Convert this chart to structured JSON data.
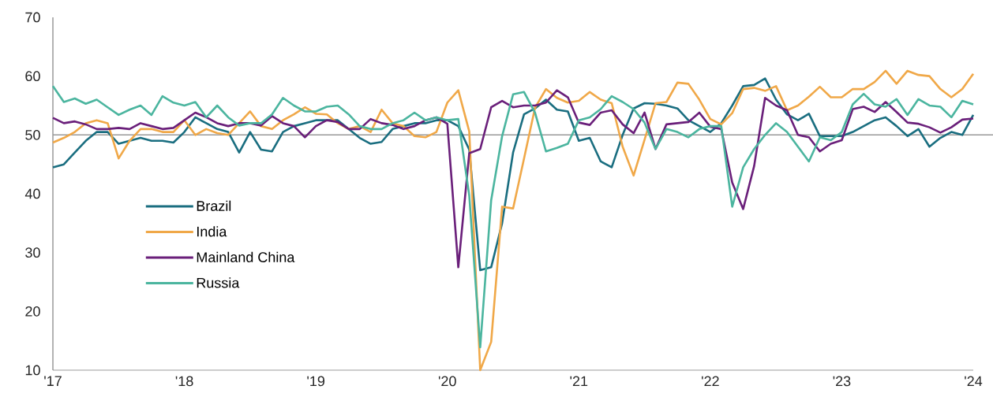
{
  "chart_data": {
    "type": "line",
    "x": [
      "2017-01",
      "2017-02",
      "2017-03",
      "2017-04",
      "2017-05",
      "2017-06",
      "2017-07",
      "2017-08",
      "2017-09",
      "2017-10",
      "2017-11",
      "2017-12",
      "2018-01",
      "2018-02",
      "2018-03",
      "2018-04",
      "2018-05",
      "2018-06",
      "2018-07",
      "2018-08",
      "2018-09",
      "2018-10",
      "2018-11",
      "2018-12",
      "2019-01",
      "2019-02",
      "2019-03",
      "2019-04",
      "2019-05",
      "2019-06",
      "2019-07",
      "2019-08",
      "2019-09",
      "2019-10",
      "2019-11",
      "2019-12",
      "2020-01",
      "2020-02",
      "2020-03",
      "2020-04",
      "2020-05",
      "2020-06",
      "2020-07",
      "2020-08",
      "2020-09",
      "2020-10",
      "2020-11",
      "2020-12",
      "2021-01",
      "2021-02",
      "2021-03",
      "2021-04",
      "2021-05",
      "2021-06",
      "2021-07",
      "2021-08",
      "2021-09",
      "2021-10",
      "2021-11",
      "2021-12",
      "2022-01",
      "2022-02",
      "2022-03",
      "2022-04",
      "2022-05",
      "2022-06",
      "2022-07",
      "2022-08",
      "2022-09",
      "2022-10",
      "2022-11",
      "2022-12",
      "2023-01",
      "2023-02",
      "2023-03",
      "2023-04",
      "2023-05",
      "2023-06",
      "2023-07",
      "2023-08",
      "2023-09",
      "2023-10",
      "2023-11",
      "2023-12",
      "2024-01"
    ],
    "series": [
      {
        "name": "Brazil",
        "color": "#1a6e80",
        "values": [
          44.5,
          45,
          47,
          49,
          50.5,
          50.5,
          48.5,
          49,
          49.5,
          49,
          49,
          48.7,
          50.5,
          53,
          52,
          51,
          50.5,
          47,
          50.5,
          47.5,
          47.2,
          50.5,
          51.5,
          52,
          52.5,
          52.5,
          52.5,
          51,
          49.5,
          48.5,
          48.8,
          51,
          51.5,
          52,
          52,
          52.5,
          52.5,
          51.5,
          47.5,
          27,
          27.5,
          35,
          47,
          53.5,
          54.5,
          56,
          54.3,
          54,
          49,
          49.5,
          45.5,
          44.5,
          50,
          54.5,
          55.4,
          55.3,
          55,
          54.5,
          52.5,
          51.5,
          50.5,
          52,
          55,
          58.3,
          58.5,
          59.6,
          56,
          53.5,
          52.5,
          53.6,
          49.8,
          49.8,
          49.8,
          50.5,
          51.5,
          52.5,
          53,
          51.5,
          49.8,
          51,
          48,
          49.5,
          50.5,
          50,
          53.4
        ]
      },
      {
        "name": "India",
        "color": "#f0a848",
        "values": [
          48.7,
          49.5,
          50.5,
          52,
          52.5,
          52,
          46,
          49,
          51,
          51,
          50.5,
          50.5,
          52.5,
          50,
          51,
          50.3,
          50,
          52,
          54,
          51.5,
          51,
          52.5,
          53.5,
          54.7,
          53.6,
          53.5,
          52,
          51,
          51.5,
          50.5,
          54.3,
          52,
          51.5,
          49.8,
          49.6,
          50.5,
          55.5,
          57.6,
          50.6,
          10,
          14.8,
          37.8,
          37.5,
          46,
          54.6,
          57.8,
          56.3,
          55.5,
          55.8,
          57.3,
          56,
          55.4,
          48,
          43.1,
          49.2,
          55.4,
          55.6,
          58.9,
          58.7,
          56,
          52.7,
          51.8,
          53.7,
          57.8,
          58,
          57.5,
          58.3,
          54.2,
          55,
          56.5,
          58.2,
          56.4,
          56.4,
          57.8,
          57.8,
          59,
          60.9,
          58.7,
          60.9,
          60.2,
          60,
          57.8,
          56.4,
          57.8,
          60.4
        ]
      },
      {
        "name": "Mainland China",
        "color": "#6a1f7a",
        "values": [
          52.9,
          52,
          52.3,
          51.8,
          51,
          51,
          51.2,
          51,
          52,
          51.5,
          51,
          51.2,
          52.5,
          53.8,
          53,
          52,
          51.5,
          52,
          52,
          51.6,
          53.2,
          52,
          51.5,
          49.6,
          51.5,
          52.5,
          52.2,
          51,
          51,
          52.7,
          52,
          51.7,
          51,
          51.5,
          52.5,
          53,
          51.9,
          27.5,
          46.9,
          47.6,
          54.7,
          55.8,
          54.7,
          55,
          55,
          55.5,
          57.6,
          56.4,
          52.1,
          51.7,
          53.8,
          54.2,
          51.8,
          50.3,
          53.8,
          47.6,
          51.8,
          52,
          52.2,
          53.8,
          51.4,
          51,
          41.9,
          37.4,
          44.7,
          56.3,
          55,
          54.2,
          50,
          49.6,
          47.2,
          48.5,
          49.1,
          54.4,
          54.8,
          53.9,
          55.6,
          53.9,
          52.1,
          51.9,
          51.3,
          50.4,
          51.3,
          52.6,
          52.8
        ]
      },
      {
        "name": "Russia",
        "color": "#4bb59f",
        "values": [
          58.3,
          55.6,
          56.2,
          55.3,
          56,
          54.7,
          53.4,
          54.3,
          55,
          53.4,
          56.6,
          55.5,
          55,
          55.6,
          53,
          55,
          53,
          51.6,
          52,
          52,
          53.5,
          56.3,
          55,
          54,
          54,
          54.8,
          55,
          53.5,
          51.5,
          51,
          51,
          52,
          52.5,
          53.8,
          52.5,
          53,
          52.5,
          52.7,
          39.7,
          13.9,
          38.9,
          49.8,
          56.9,
          57.3,
          53.8,
          47.2,
          47.8,
          48.5,
          52.5,
          53,
          54.4,
          56.6,
          55.6,
          54.4,
          52.1,
          47.6,
          51,
          50.5,
          49.6,
          51,
          51.5,
          51.5,
          37.8,
          44.5,
          47.6,
          50,
          52,
          50.5,
          48,
          45.5,
          49.6,
          49.1,
          50.5,
          55.2,
          57,
          55.2,
          54.8,
          56.1,
          53.4,
          56.1,
          55,
          54.8,
          53,
          55.8,
          55.2
        ]
      }
    ],
    "xlim": [
      "2017-01",
      "2024-01"
    ],
    "xticks": [
      {
        "value": "2017-01",
        "label": "'17"
      },
      {
        "value": "2018-01",
        "label": "'18"
      },
      {
        "value": "2019-01",
        "label": "'19"
      },
      {
        "value": "2020-01",
        "label": "'20"
      },
      {
        "value": "2021-01",
        "label": "'21"
      },
      {
        "value": "2022-01",
        "label": "'22"
      },
      {
        "value": "2023-01",
        "label": "'23"
      },
      {
        "value": "2024-01",
        "label": "'24"
      }
    ],
    "ylim": [
      10,
      70
    ],
    "yticks": [
      10,
      20,
      30,
      40,
      50,
      60,
      70
    ],
    "ref_lines": [
      {
        "axis": "y",
        "value": 50,
        "color": "#999999"
      }
    ],
    "legend": "left"
  }
}
